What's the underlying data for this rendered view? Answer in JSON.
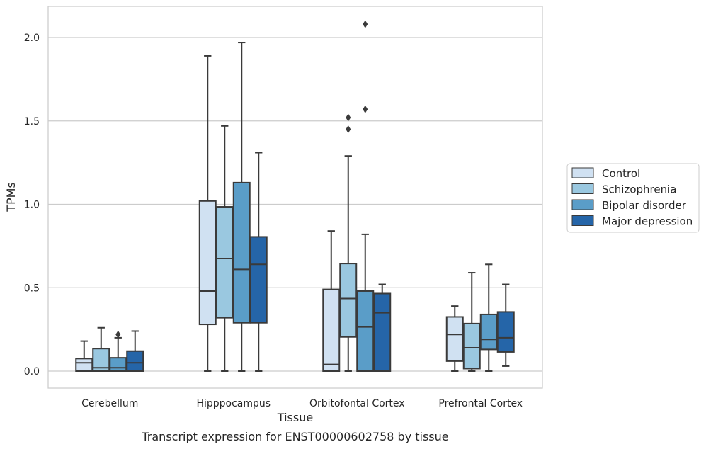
{
  "chart_data": {
    "type": "box",
    "xlabel": "Tissue",
    "ylabel": "TPMs",
    "caption": "Transcript expression for ENST00000602758 by tissue",
    "ylim": [
      -0.1,
      2.2
    ],
    "yticks": [
      0.0,
      0.5,
      1.0,
      1.5,
      2.0
    ],
    "ytick_labels": [
      "0.0",
      "0.5",
      "1.0",
      "1.5",
      "2.0"
    ],
    "grid": "horizontal",
    "legend_position": "right",
    "categories": [
      "Cerebellum",
      "Hipppocampus",
      "Orbitofontal Cortex",
      "Prefrontal Cortex"
    ],
    "series": [
      {
        "name": "Control",
        "color": "#d0e1f2",
        "boxes": [
          {
            "whislo": 0.0,
            "q1": 0.0,
            "med": 0.05,
            "q3": 0.075,
            "whishi": 0.18,
            "fliers": []
          },
          {
            "whislo": 0.0,
            "q1": 0.28,
            "med": 0.48,
            "q3": 1.02,
            "whishi": 1.89,
            "fliers": []
          },
          {
            "whislo": 0.0,
            "q1": 0.0,
            "med": 0.04,
            "q3": 0.49,
            "whishi": 0.84,
            "fliers": []
          },
          {
            "whislo": 0.0,
            "q1": 0.06,
            "med": 0.22,
            "q3": 0.325,
            "whishi": 0.39,
            "fliers": []
          }
        ]
      },
      {
        "name": "Schizophrenia",
        "color": "#9ac8e0",
        "boxes": [
          {
            "whislo": 0.0,
            "q1": 0.0,
            "med": 0.02,
            "q3": 0.135,
            "whishi": 0.26,
            "fliers": []
          },
          {
            "whislo": 0.0,
            "q1": 0.32,
            "med": 0.675,
            "q3": 0.985,
            "whishi": 1.47,
            "fliers": []
          },
          {
            "whislo": 0.0,
            "q1": 0.205,
            "med": 0.435,
            "q3": 0.645,
            "whishi": 1.29,
            "fliers": [
              1.45,
              1.52
            ]
          },
          {
            "whislo": 0.0,
            "q1": 0.015,
            "med": 0.14,
            "q3": 0.285,
            "whishi": 0.59,
            "fliers": []
          }
        ]
      },
      {
        "name": "Bipolar disorder",
        "color": "#5a9dc8",
        "boxes": [
          {
            "whislo": 0.0,
            "q1": 0.0,
            "med": 0.02,
            "q3": 0.08,
            "whishi": 0.2,
            "fliers": [
              0.22
            ]
          },
          {
            "whislo": 0.0,
            "q1": 0.29,
            "med": 0.61,
            "q3": 1.13,
            "whishi": 1.97,
            "fliers": []
          },
          {
            "whislo": 0.0,
            "q1": 0.0,
            "med": 0.265,
            "q3": 0.48,
            "whishi": 0.82,
            "fliers": [
              1.57,
              2.08
            ]
          },
          {
            "whislo": 0.0,
            "q1": 0.13,
            "med": 0.19,
            "q3": 0.34,
            "whishi": 0.64,
            "fliers": []
          }
        ]
      },
      {
        "name": "Major depression",
        "color": "#2565a8",
        "boxes": [
          {
            "whislo": 0.0,
            "q1": 0.0,
            "med": 0.05,
            "q3": 0.12,
            "whishi": 0.24,
            "fliers": []
          },
          {
            "whislo": 0.0,
            "q1": 0.29,
            "med": 0.64,
            "q3": 0.805,
            "whishi": 1.31,
            "fliers": []
          },
          {
            "whislo": 0.0,
            "q1": 0.0,
            "med": 0.35,
            "q3": 0.465,
            "whishi": 0.52,
            "fliers": []
          },
          {
            "whislo": 0.03,
            "q1": 0.115,
            "med": 0.2,
            "q3": 0.355,
            "whishi": 0.52,
            "fliers": []
          }
        ]
      }
    ]
  }
}
